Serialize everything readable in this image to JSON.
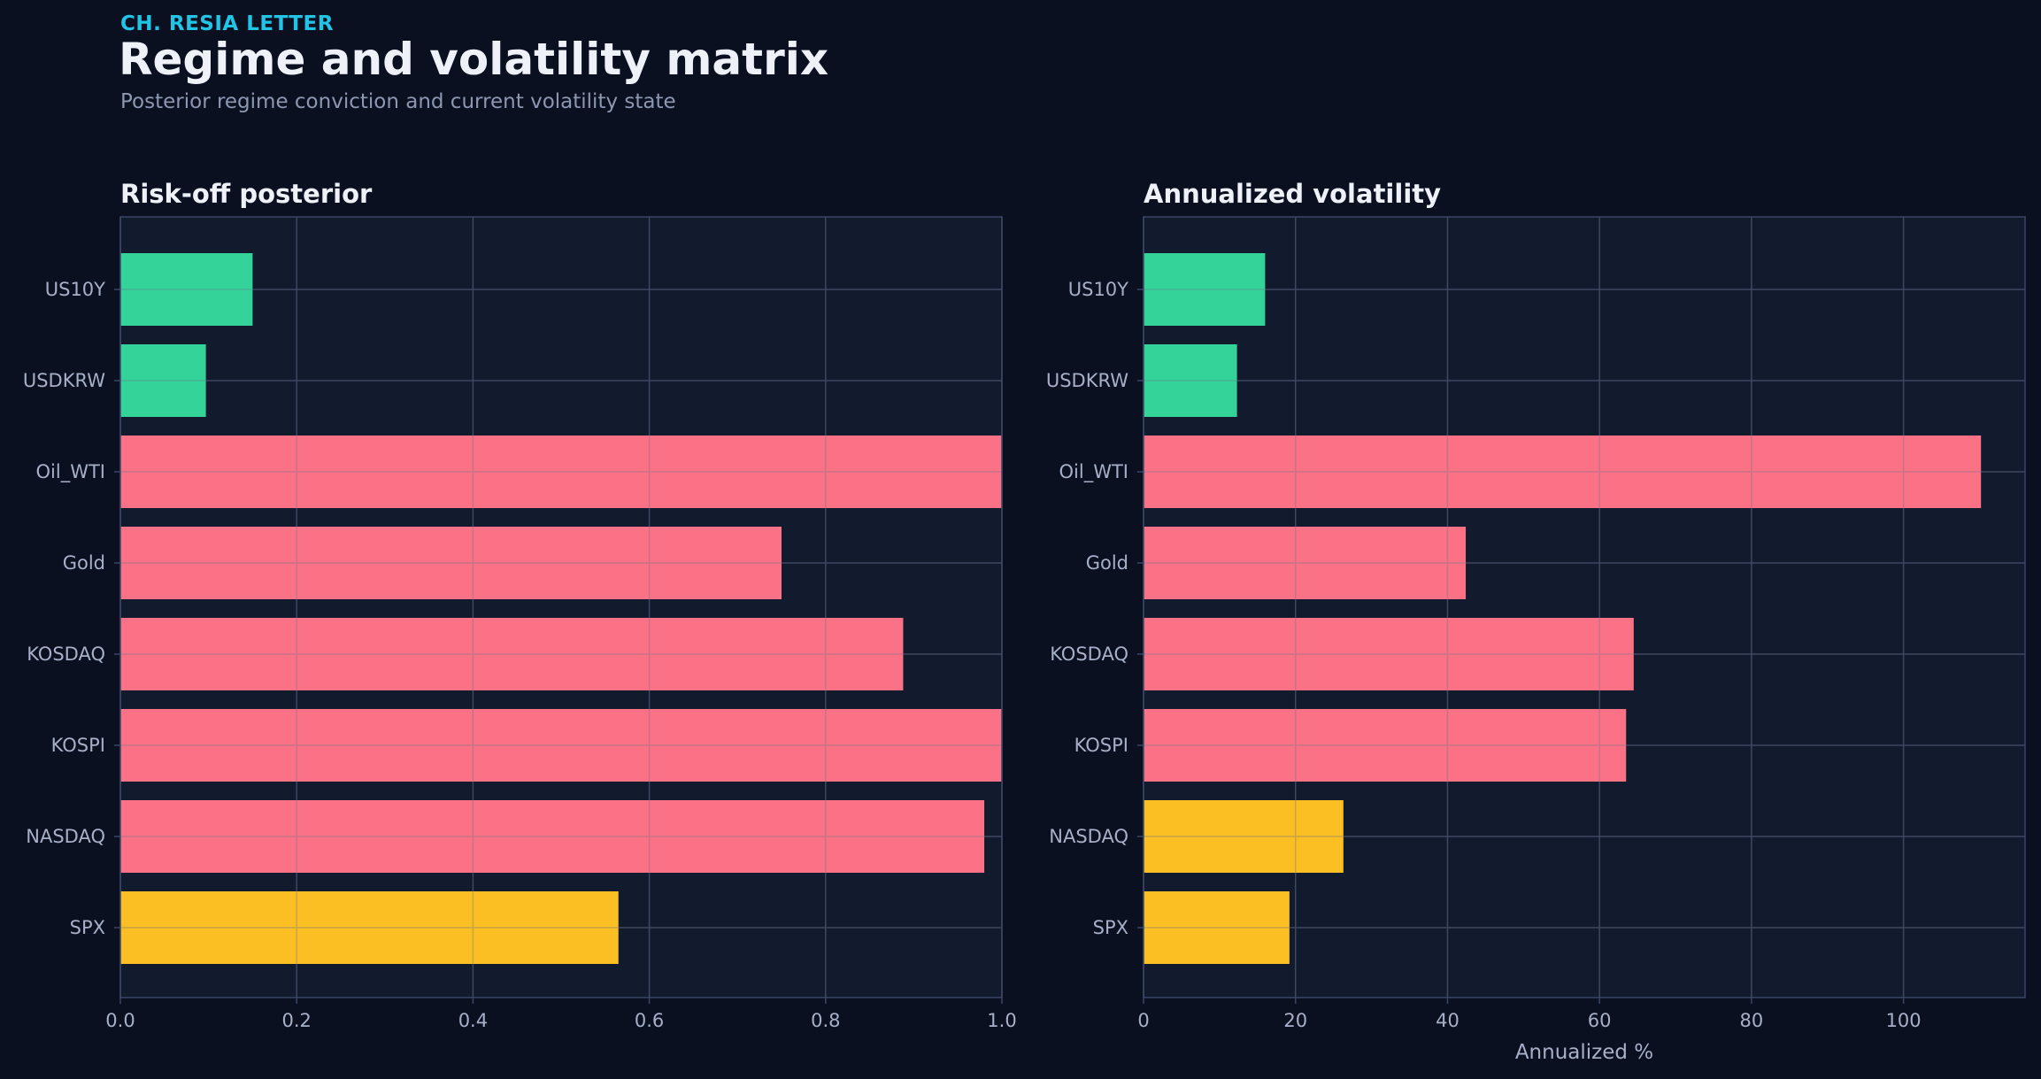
{
  "header": {
    "kicker": "CH. RESIA LETTER",
    "title": "Regime and volatility matrix",
    "subtitle": "Posterior regime conviction and current volatility state"
  },
  "colors": {
    "background": "#0b1020",
    "panel": "#121a2e",
    "grid": "#26304a",
    "frame": "#3a4668",
    "green": "#34d399",
    "red": "#fb7185",
    "yellow": "#fbbf24"
  },
  "chart_data": [
    {
      "type": "bar",
      "orientation": "horizontal",
      "title": "Risk-off posterior",
      "xlabel": "",
      "categories": [
        "US10Y",
        "USDKRW",
        "Oil_WTI",
        "Gold",
        "KOSDAQ",
        "KOSPI",
        "NASDAQ",
        "SPX"
      ],
      "values": [
        0.15,
        0.097,
        1.0,
        0.75,
        0.888,
        1.0,
        0.98,
        0.565
      ],
      "bar_colors": [
        "green",
        "green",
        "red",
        "red",
        "red",
        "red",
        "red",
        "yellow"
      ],
      "xlim": [
        0,
        1.0
      ],
      "ticks": [
        "0.0",
        "0.2",
        "0.4",
        "0.6",
        "0.8",
        "1.0"
      ],
      "tick_values": [
        0,
        0.2,
        0.4,
        0.6,
        0.8,
        1.0
      ],
      "grid": true
    },
    {
      "type": "bar",
      "orientation": "horizontal",
      "title": "Annualized volatility",
      "xlabel": "Annualized %",
      "categories": [
        "US10Y",
        "USDKRW",
        "Oil_WTI",
        "Gold",
        "KOSDAQ",
        "KOSPI",
        "NASDAQ",
        "SPX"
      ],
      "values": [
        16.0,
        12.3,
        110.2,
        42.4,
        64.5,
        63.5,
        26.3,
        19.2
      ],
      "bar_colors": [
        "green",
        "green",
        "red",
        "red",
        "red",
        "red",
        "yellow",
        "yellow"
      ],
      "xlim": [
        0,
        116
      ],
      "ticks": [
        "0",
        "20",
        "40",
        "60",
        "80",
        "100"
      ],
      "tick_values": [
        0,
        20,
        40,
        60,
        80,
        100
      ],
      "grid": true
    }
  ]
}
